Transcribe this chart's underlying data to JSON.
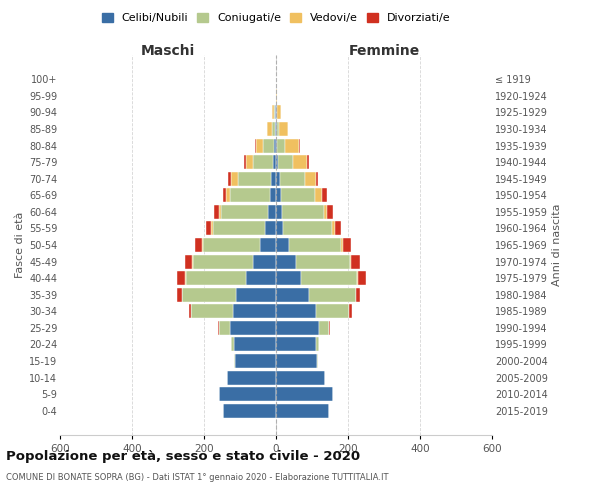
{
  "age_groups_bottom_to_top": [
    "0-4",
    "5-9",
    "10-14",
    "15-19",
    "20-24",
    "25-29",
    "30-34",
    "35-39",
    "40-44",
    "45-49",
    "50-54",
    "55-59",
    "60-64",
    "65-69",
    "70-74",
    "75-79",
    "80-84",
    "85-89",
    "90-94",
    "95-99",
    "100+"
  ],
  "birth_years_bottom_to_top": [
    "2015-2019",
    "2010-2014",
    "2005-2009",
    "2000-2004",
    "1995-1999",
    "1990-1994",
    "1985-1989",
    "1980-1984",
    "1975-1979",
    "1970-1974",
    "1965-1969",
    "1960-1964",
    "1955-1959",
    "1950-1954",
    "1945-1949",
    "1940-1944",
    "1935-1939",
    "1930-1934",
    "1925-1929",
    "1920-1924",
    "≤ 1919"
  ],
  "male": {
    "celibi": [
      148,
      158,
      135,
      115,
      118,
      128,
      120,
      112,
      82,
      65,
      45,
      30,
      22,
      18,
      15,
      8,
      5,
      2,
      2,
      0,
      0
    ],
    "coniugati": [
      0,
      0,
      0,
      2,
      8,
      30,
      115,
      148,
      168,
      165,
      158,
      145,
      130,
      110,
      90,
      55,
      30,
      8,
      3,
      0,
      0
    ],
    "vedovi": [
      0,
      0,
      0,
      0,
      0,
      0,
      0,
      2,
      2,
      2,
      2,
      5,
      5,
      10,
      20,
      20,
      20,
      15,
      5,
      1,
      0
    ],
    "divorziati": [
      0,
      0,
      0,
      0,
      0,
      2,
      8,
      12,
      22,
      22,
      20,
      15,
      15,
      10,
      8,
      5,
      2,
      0,
      0,
      0,
      0
    ]
  },
  "female": {
    "nubili": [
      148,
      158,
      135,
      115,
      112,
      120,
      112,
      92,
      70,
      55,
      35,
      20,
      18,
      14,
      10,
      6,
      4,
      2,
      2,
      0,
      0
    ],
    "coniugate": [
      0,
      0,
      0,
      2,
      8,
      28,
      90,
      130,
      155,
      150,
      145,
      135,
      115,
      95,
      70,
      40,
      20,
      5,
      2,
      0,
      0
    ],
    "vedove": [
      0,
      0,
      0,
      0,
      0,
      0,
      0,
      1,
      2,
      3,
      5,
      8,
      10,
      20,
      30,
      40,
      40,
      25,
      10,
      2,
      0
    ],
    "divorziate": [
      0,
      0,
      0,
      0,
      0,
      2,
      8,
      10,
      22,
      25,
      22,
      18,
      15,
      12,
      8,
      5,
      2,
      0,
      0,
      0,
      0
    ]
  },
  "colors": {
    "celibi": "#3a6ea5",
    "coniugati": "#b5c98e",
    "vedovi": "#f0c060",
    "divorziati": "#d03020"
  },
  "xlim": 600,
  "title": "Popolazione per età, sesso e stato civile - 2020",
  "subtitle": "COMUNE DI BONATE SOPRA (BG) - Dati ISTAT 1° gennaio 2020 - Elaborazione TUTTITALIA.IT",
  "xlabel_left": "Maschi",
  "xlabel_right": "Femmine",
  "ylabel_left": "Fasce di età",
  "ylabel_right": "Anni di nascita",
  "legend_labels": [
    "Celibi/Nubili",
    "Coniugati/e",
    "Vedovi/e",
    "Divorziati/e"
  ]
}
